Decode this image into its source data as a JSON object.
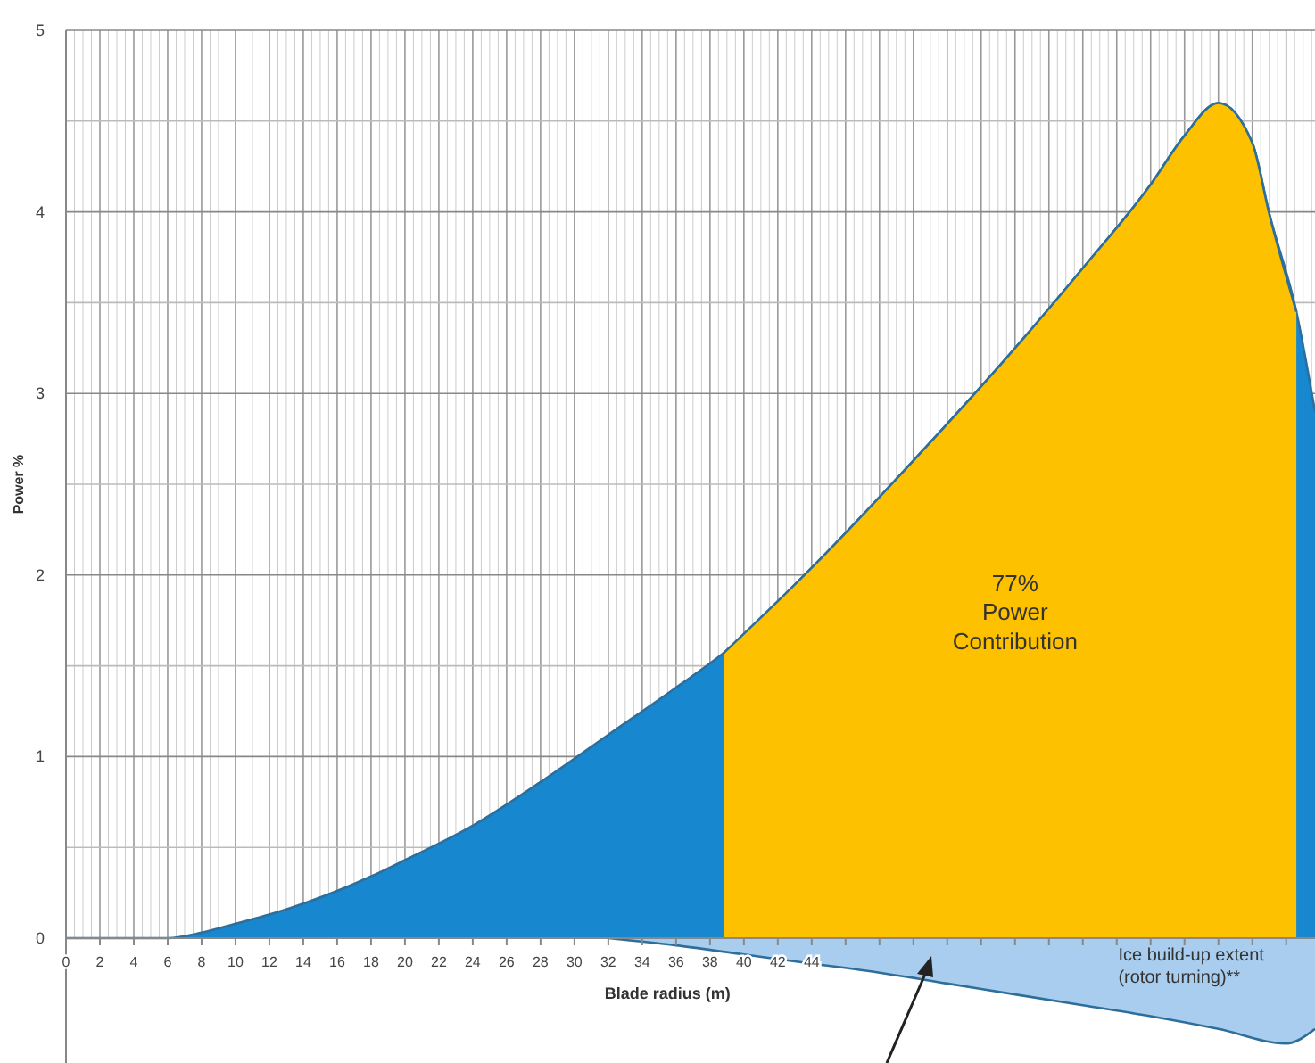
{
  "chart_data": {
    "type": "area",
    "xlabel": "Blade radius (m)",
    "ylabel": "Power %",
    "xlim": [
      0,
      73.7
    ],
    "ylim": [
      -0.7,
      5
    ],
    "xticks": [
      0,
      2,
      4,
      6,
      8,
      10,
      12,
      14,
      16,
      18,
      20,
      22,
      24,
      26,
      28,
      30,
      32,
      34,
      36,
      38,
      40,
      42,
      44,
      {
        "value": 46,
        "label": null
      },
      {
        "value": 48,
        "label": null
      },
      {
        "value": 50,
        "label": null
      },
      {
        "value": 52,
        "label": null
      },
      {
        "value": 54,
        "label": null
      },
      {
        "value": 56,
        "label": null
      },
      {
        "value": 58,
        "label": null
      },
      {
        "value": 60,
        "label": null
      },
      {
        "value": 62,
        "label": null
      },
      {
        "value": 64,
        "label": null
      },
      {
        "value": 66,
        "label": null
      },
      {
        "value": 68,
        "label": null
      },
      {
        "value": 70,
        "label": null
      },
      {
        "value": 72,
        "label": null
      }
    ],
    "yticks": [
      0,
      {
        "value": 0.5,
        "label": null
      },
      1,
      {
        "value": 1.5,
        "label": null
      },
      2,
      {
        "value": 2.5,
        "label": null
      },
      3,
      {
        "value": 3.5,
        "label": null
      },
      4,
      {
        "value": 4.5,
        "label": null
      },
      5
    ],
    "grid": true,
    "series": [
      {
        "color": "#1787cf",
        "x": [
          0,
          6,
          8,
          10,
          12,
          14,
          16,
          18,
          20,
          24,
          28,
          32,
          36,
          38.8,
          44,
          50,
          56,
          60,
          64,
          66,
          68,
          70,
          71,
          72.6,
          73.7
        ],
        "values": [
          0,
          0,
          0.03,
          0.08,
          0.13,
          0.19,
          0.26,
          0.34,
          0.43,
          0.62,
          0.86,
          1.12,
          1.38,
          1.57,
          2.04,
          2.63,
          3.25,
          3.69,
          4.15,
          4.42,
          4.6,
          4.38,
          3.99,
          3.45,
          2.9
        ]
      },
      {
        "color": "#fdc100",
        "x": [
          38.8,
          44,
          50,
          56,
          60,
          64,
          66,
          68,
          70,
          71,
          72.6
        ],
        "values": [
          1.57,
          2.04,
          2.63,
          3.25,
          3.69,
          4.15,
          4.42,
          4.6,
          4.38,
          3.99,
          3.45
        ]
      },
      {
        "color": "#a8cdee",
        "x": [
          32,
          36,
          40,
          44,
          48,
          52,
          56,
          60,
          64,
          68,
          72,
          73.7
        ],
        "values": [
          0,
          -0.04,
          -0.09,
          -0.14,
          -0.19,
          -0.25,
          -0.31,
          -0.37,
          -0.43,
          -0.5,
          -0.58,
          -0.5
        ]
      }
    ],
    "annotations": [
      "77%\nPower\nContribution",
      "Ice build-up extent\n(rotor turning)**"
    ]
  }
}
